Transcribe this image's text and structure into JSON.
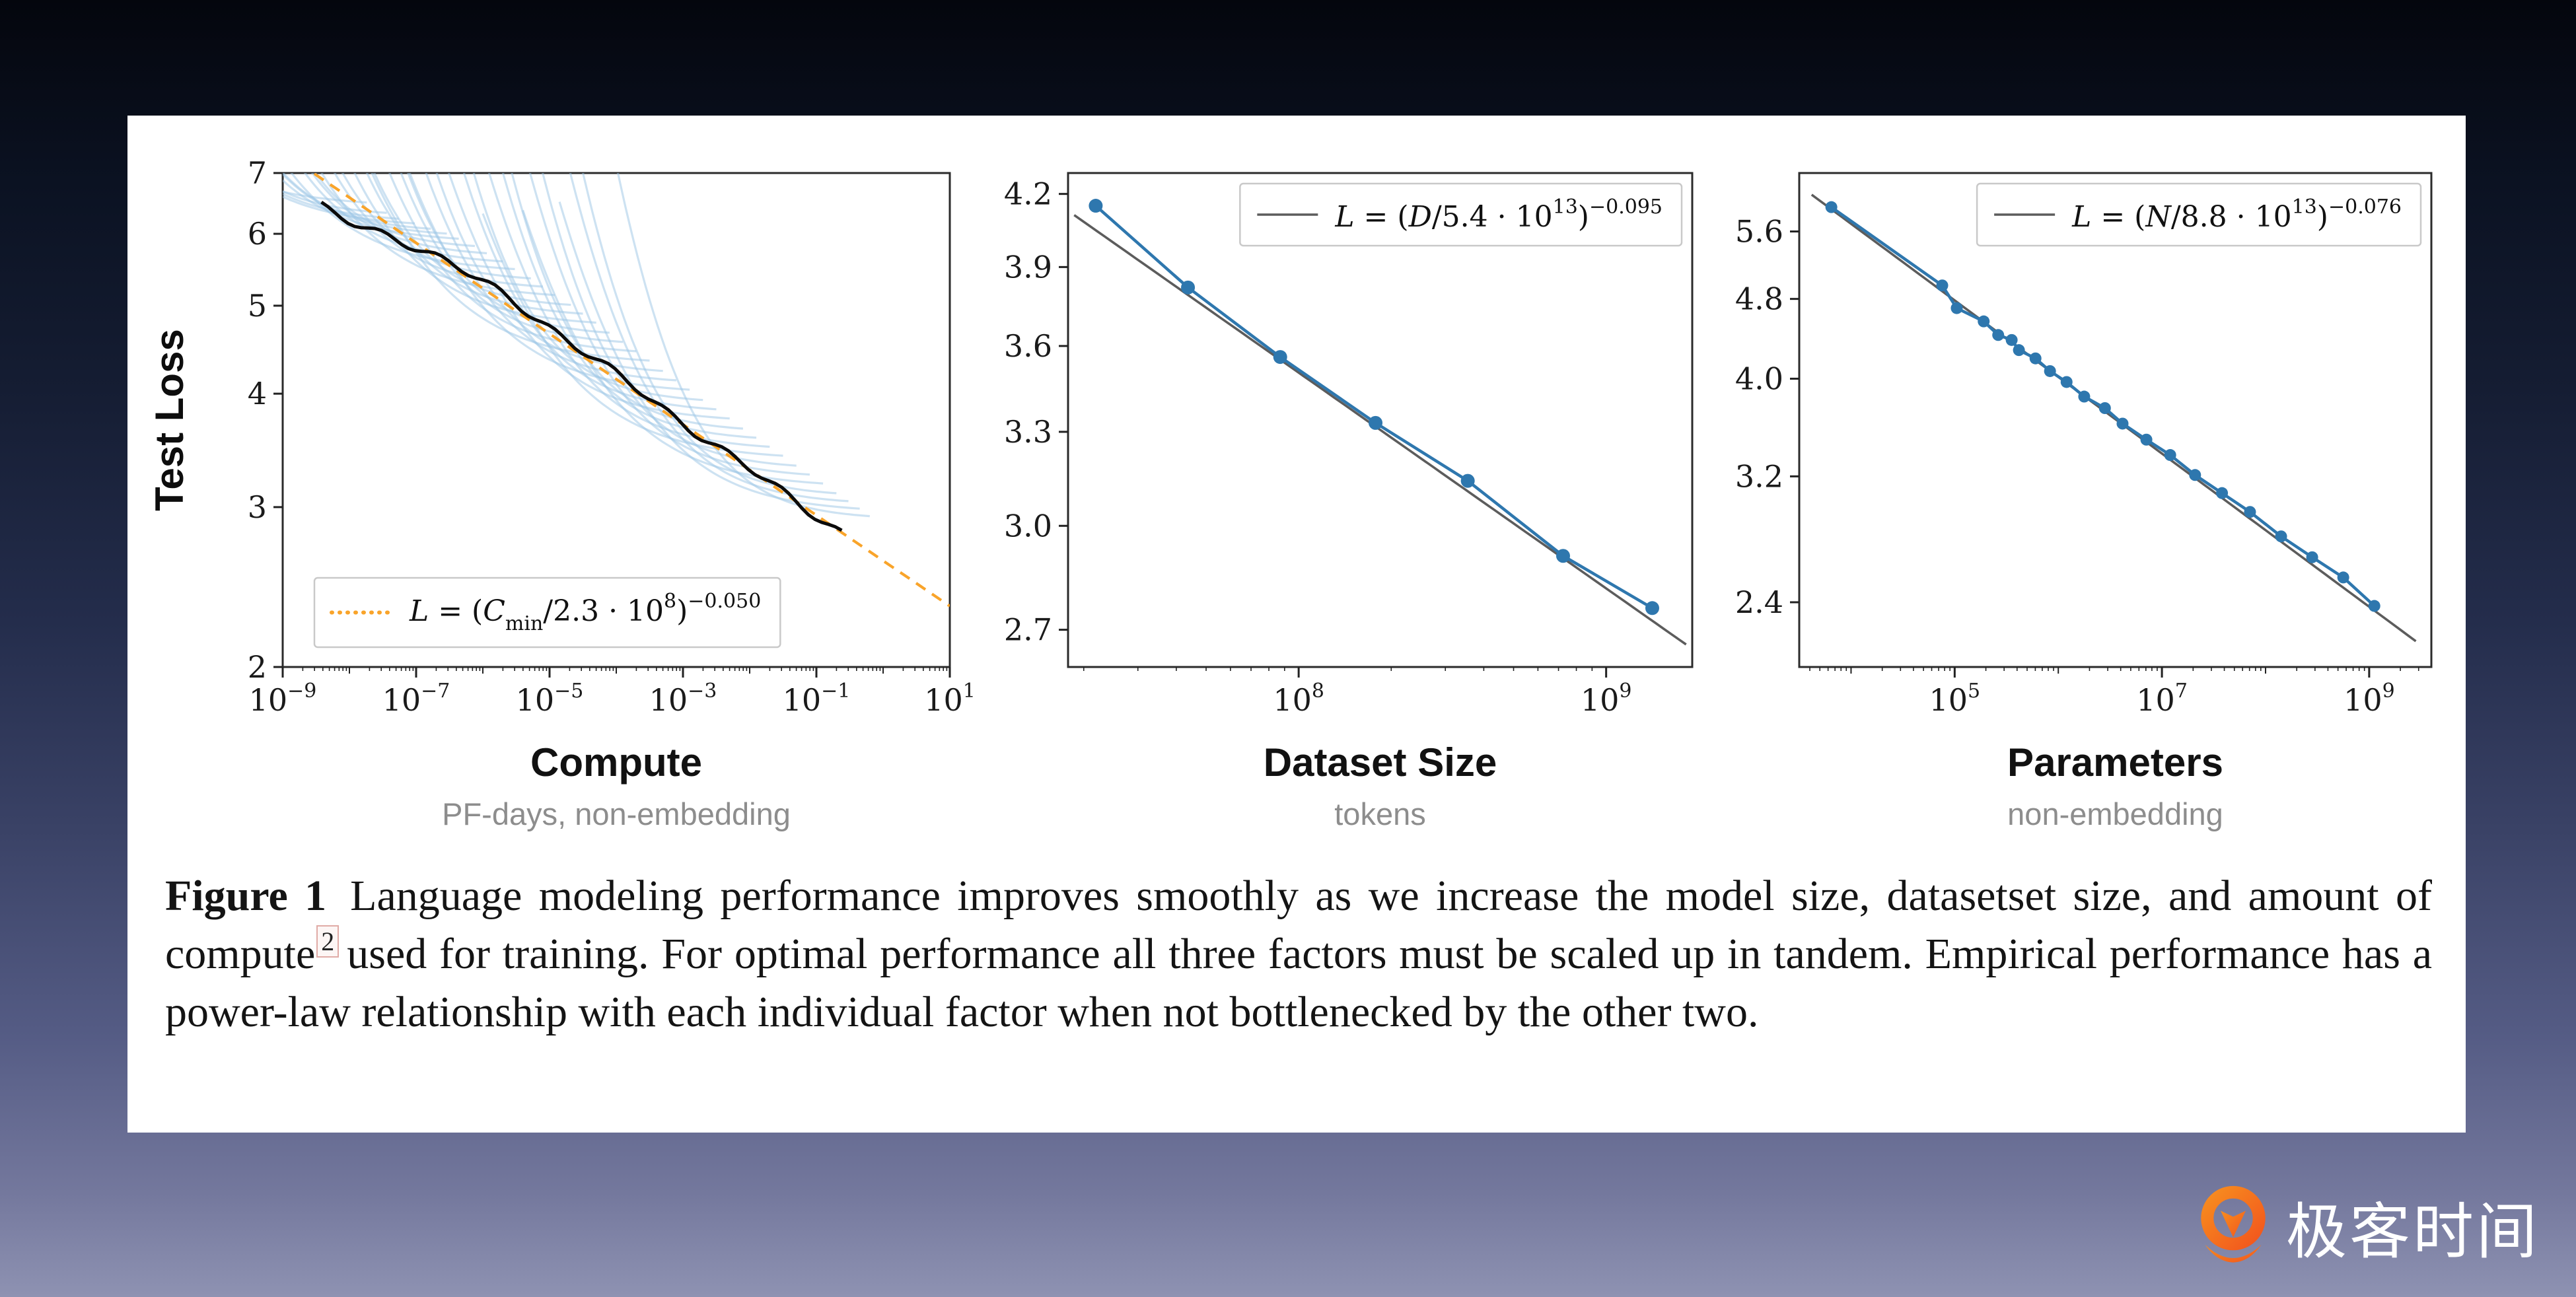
{
  "slide": {
    "background_top_color": "#04060d",
    "background_bottom_color": "#8e92b2",
    "card_color": "#ffffff"
  },
  "caption": {
    "label": "Figure 1",
    "text_before_sup": "Language modeling performance improves smoothly as we increase the model size, datasetset size, and amount of compute",
    "footnote_marker": "2",
    "text_after_sup": "used for training.  For optimal performance all three factors must be scaled up in tandem.  Empirical performance has a power-law relationship with each individual factor when not bottlenecked by the other two."
  },
  "logo": {
    "text": "极客时间",
    "icon_name": "geektime-pin-icon",
    "icon_color": "#f4671f",
    "icon_color_light": "#f78d1f",
    "text_color": "#ffffff"
  },
  "chart_data": [
    {
      "id": "compute",
      "type": "line",
      "title": "Compute",
      "subtitle": "PF-days, non-embedding",
      "ylabel": "Test Loss",
      "xscale": "log",
      "yscale": "log",
      "xlim_log10": [
        -9,
        1
      ],
      "ylim": [
        2,
        7
      ],
      "xticks_log10": [
        -9,
        -7,
        -5,
        -3,
        -1,
        1
      ],
      "yticks": [
        "2",
        "3",
        "4",
        "5",
        "6",
        "7"
      ],
      "grid": false,
      "fit": {
        "formula": "L = (C_min/2.3e8)^-0.050",
        "scale": 230000000.0,
        "exponent": -0.05,
        "color": "#f9a42a",
        "style": "dashed",
        "x_range_log10": [
          -9,
          1
        ]
      },
      "envelope": {
        "description": "black lower envelope of training curves",
        "x_range_log10": [
          -8.42,
          -0.62
        ],
        "color": "#0b0b0b"
      },
      "training_curves": {
        "description": "light blue per-model training curves, approximate",
        "color": "#9cc5e5",
        "tangents_log10": [
          -8.3,
          -8.05,
          -7.82,
          -7.6,
          -7.38,
          -7.16,
          -6.95,
          -6.74,
          -6.52,
          -6.3,
          -6.1,
          -5.9,
          -5.7,
          -5.5,
          -5.3,
          -5.1,
          -4.9,
          -4.7,
          -4.5,
          -4.3,
          -4.1,
          -3.9,
          -3.7,
          -3.5,
          -3.3,
          -3.1,
          -2.9,
          -2.7,
          -2.5,
          -2.3,
          -2.1,
          -1.9,
          -1.7,
          -1.5,
          -1.3,
          -1.12,
          -0.95,
          -0.8
        ]
      },
      "legend": {
        "position": "bottom-left",
        "sample": "dotted",
        "parts": [
          {
            "t": "L",
            "s": "i"
          },
          {
            "t": " = (",
            "s": "n"
          },
          {
            "t": "C",
            "s": "i"
          },
          {
            "t": "min",
            "s": "sub"
          },
          {
            "t": "/2.3 · 10",
            "s": "n"
          },
          {
            "t": "8",
            "s": "sup"
          },
          {
            "t": ")",
            "s": "n"
          },
          {
            "t": "−0.050",
            "s": "sup"
          }
        ]
      }
    },
    {
      "id": "dataset",
      "type": "line",
      "title": "Dataset Size",
      "subtitle": "tokens",
      "xscale": "log",
      "yscale": "log",
      "x_format": "log10",
      "xlim_log10": [
        7.25,
        9.28
      ],
      "ylim": [
        2.6,
        4.29
      ],
      "xticks_log10": [
        8,
        9
      ],
      "yticks": [
        "2.7",
        "3.0",
        "3.3",
        "3.6",
        "3.9",
        "4.2"
      ],
      "grid": false,
      "series_color": "#2e77ae",
      "marker_radius": 10.5,
      "points_log10x_y": [
        [
          7.34,
          4.15
        ],
        [
          7.64,
          3.82
        ],
        [
          7.94,
          3.56
        ],
        [
          8.25,
          3.33
        ],
        [
          8.55,
          3.14
        ],
        [
          8.86,
          2.91
        ],
        [
          9.15,
          2.76
        ]
      ],
      "fit": {
        "formula": "L = (D/5.4e13)^-0.095",
        "scale": 54000000000000.0,
        "exponent": -0.095,
        "color": "#5c5c5c",
        "style": "solid",
        "x_range_log10": [
          7.27,
          9.26
        ]
      },
      "legend": {
        "position": "top-right",
        "sample": "line",
        "parts": [
          {
            "t": "L",
            "s": "i"
          },
          {
            "t": " = (",
            "s": "n"
          },
          {
            "t": "D",
            "s": "i"
          },
          {
            "t": "/5.4 · 10",
            "s": "n"
          },
          {
            "t": "13",
            "s": "sup"
          },
          {
            "t": ")",
            "s": "n"
          },
          {
            "t": "−0.095",
            "s": "sup"
          }
        ]
      }
    },
    {
      "id": "parameters",
      "type": "line",
      "title": "Parameters",
      "subtitle": "non-embedding",
      "xscale": "log",
      "yscale": "log",
      "x_format": "log10",
      "xlim_log10": [
        3.5,
        9.6
      ],
      "ylim": [
        2.07,
        6.4
      ],
      "xticks_log10": [
        5,
        7,
        9
      ],
      "yticks": [
        "2.4",
        "3.2",
        "4.0",
        "4.8",
        "5.6"
      ],
      "grid": false,
      "series_color": "#2e77ae",
      "marker_radius": 9,
      "points_log10x_y": [
        [
          3.81,
          5.92
        ],
        [
          4.88,
          4.95
        ],
        [
          5.02,
          4.7
        ],
        [
          5.28,
          4.56
        ],
        [
          5.42,
          4.42
        ],
        [
          5.55,
          4.37
        ],
        [
          5.62,
          4.27
        ],
        [
          5.78,
          4.19
        ],
        [
          5.92,
          4.07
        ],
        [
          6.08,
          3.97
        ],
        [
          6.25,
          3.84
        ],
        [
          6.45,
          3.74
        ],
        [
          6.62,
          3.61
        ],
        [
          6.85,
          3.48
        ],
        [
          7.08,
          3.36
        ],
        [
          7.32,
          3.21
        ],
        [
          7.58,
          3.08
        ],
        [
          7.85,
          2.95
        ],
        [
          8.15,
          2.79
        ],
        [
          8.45,
          2.66
        ],
        [
          8.75,
          2.54
        ],
        [
          9.05,
          2.38
        ]
      ],
      "fit": {
        "formula": "L = (N/8.8e13)^-0.076",
        "scale": 88000000000000.0,
        "exponent": -0.076,
        "color": "#5c5c5c",
        "style": "solid",
        "x_range_log10": [
          3.62,
          9.45
        ]
      },
      "legend": {
        "position": "top-right",
        "sample": "line",
        "parts": [
          {
            "t": "L",
            "s": "i"
          },
          {
            "t": " = (",
            "s": "n"
          },
          {
            "t": "N",
            "s": "i"
          },
          {
            "t": "/8.8 · 10",
            "s": "n"
          },
          {
            "t": "13",
            "s": "sup"
          },
          {
            "t": ")",
            "s": "n"
          },
          {
            "t": "−0.076",
            "s": "sup"
          }
        ]
      }
    }
  ]
}
